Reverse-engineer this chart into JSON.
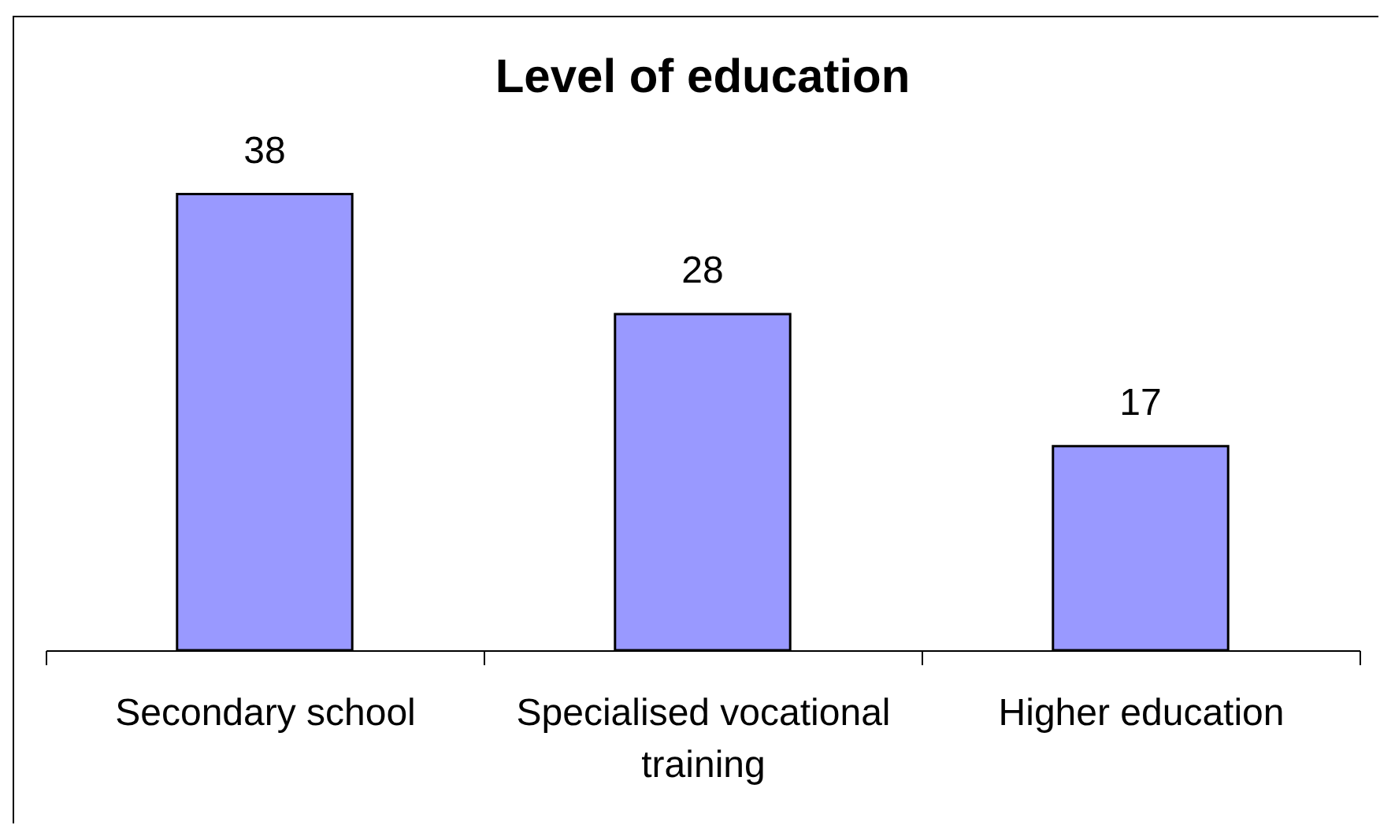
{
  "chart_data": {
    "type": "bar",
    "title": "Level of education",
    "categories": [
      "Secondary school",
      "Specialised vocational training",
      "Higher education"
    ],
    "values": [
      38,
      28,
      17
    ],
    "color": "#9999ff",
    "data_labels": true,
    "tick_labels": "x"
  }
}
